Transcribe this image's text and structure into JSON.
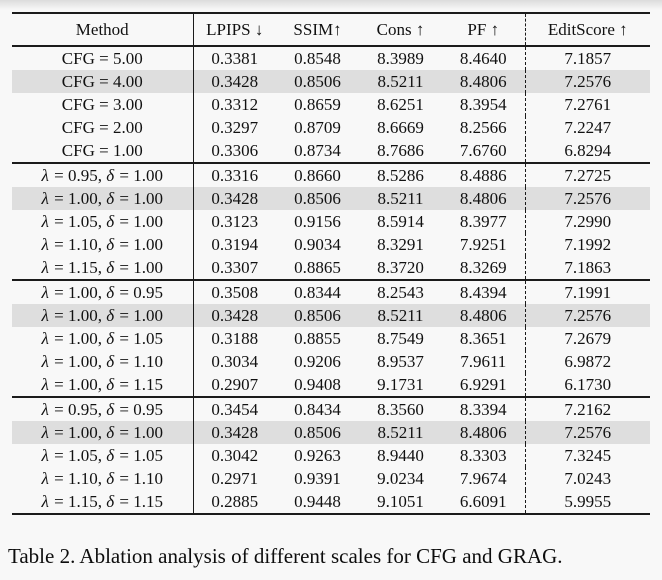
{
  "table": {
    "headers": [
      "Method",
      "LPIPS ↓",
      "SSIM↑",
      "Cons ↑",
      "PF ↑",
      "EditScore ↑"
    ],
    "groups": [
      {
        "rows": [
          {
            "method": "CFG = 5.00",
            "values": [
              "0.3381",
              "0.8548",
              "8.3989",
              "8.4640",
              "7.1857"
            ],
            "highlight": false
          },
          {
            "method": "CFG = 4.00",
            "values": [
              "0.3428",
              "0.8506",
              "8.5211",
              "8.4806",
              "7.2576"
            ],
            "highlight": true
          },
          {
            "method": "CFG = 3.00",
            "values": [
              "0.3312",
              "0.8659",
              "8.6251",
              "8.3954",
              "7.2761"
            ],
            "highlight": false
          },
          {
            "method": "CFG = 2.00",
            "values": [
              "0.3297",
              "0.8709",
              "8.6669",
              "8.2566",
              "7.2247"
            ],
            "highlight": false
          },
          {
            "method": "CFG = 1.00",
            "values": [
              "0.3306",
              "0.8734",
              "8.7686",
              "7.6760",
              "6.8294"
            ],
            "highlight": false
          }
        ]
      },
      {
        "rows": [
          {
            "method": "λ = 0.95, δ = 1.00",
            "values": [
              "0.3316",
              "0.8660",
              "8.5286",
              "8.4886",
              "7.2725"
            ],
            "highlight": false
          },
          {
            "method": "λ = 1.00, δ = 1.00",
            "values": [
              "0.3428",
              "0.8506",
              "8.5211",
              "8.4806",
              "7.2576"
            ],
            "highlight": true
          },
          {
            "method": "λ = 1.05, δ = 1.00",
            "values": [
              "0.3123",
              "0.9156",
              "8.5914",
              "8.3977",
              "7.2990"
            ],
            "highlight": false
          },
          {
            "method": "λ = 1.10, δ = 1.00",
            "values": [
              "0.3194",
              "0.9034",
              "8.3291",
              "7.9251",
              "7.1992"
            ],
            "highlight": false
          },
          {
            "method": "λ = 1.15, δ = 1.00",
            "values": [
              "0.3307",
              "0.8865",
              "8.3720",
              "8.3269",
              "7.1863"
            ],
            "highlight": false
          }
        ]
      },
      {
        "rows": [
          {
            "method": "λ = 1.00, δ = 0.95",
            "values": [
              "0.3508",
              "0.8344",
              "8.2543",
              "8.4394",
              "7.1991"
            ],
            "highlight": false
          },
          {
            "method": "λ = 1.00, δ = 1.00",
            "values": [
              "0.3428",
              "0.8506",
              "8.5211",
              "8.4806",
              "7.2576"
            ],
            "highlight": true
          },
          {
            "method": "λ = 1.00, δ = 1.05",
            "values": [
              "0.3188",
              "0.8855",
              "8.7549",
              "8.3651",
              "7.2679"
            ],
            "highlight": false
          },
          {
            "method": "λ = 1.00, δ = 1.10",
            "values": [
              "0.3034",
              "0.9206",
              "8.9537",
              "7.9611",
              "6.9872"
            ],
            "highlight": false
          },
          {
            "method": "λ = 1.00, δ = 1.15",
            "values": [
              "0.2907",
              "0.9408",
              "9.1731",
              "6.9291",
              "6.1730"
            ],
            "highlight": false
          }
        ]
      },
      {
        "rows": [
          {
            "method": "λ = 0.95, δ = 0.95",
            "values": [
              "0.3454",
              "0.8434",
              "8.3560",
              "8.3394",
              "7.2162"
            ],
            "highlight": false
          },
          {
            "method": "λ = 1.00, δ = 1.00",
            "values": [
              "0.3428",
              "0.8506",
              "8.5211",
              "8.4806",
              "7.2576"
            ],
            "highlight": true
          },
          {
            "method": "λ = 1.05, δ = 1.05",
            "values": [
              "0.3042",
              "0.9263",
              "8.9440",
              "8.3303",
              "7.3245"
            ],
            "highlight": false
          },
          {
            "method": "λ = 1.10, δ = 1.10",
            "values": [
              "0.2971",
              "0.9391",
              "9.0234",
              "7.9674",
              "7.0243"
            ],
            "highlight": false
          },
          {
            "method": "λ = 1.15, δ = 1.15",
            "values": [
              "0.2885",
              "0.9448",
              "9.1051",
              "6.6091",
              "5.9955"
            ],
            "highlight": false
          }
        ]
      }
    ]
  },
  "caption": "Table 2. Ablation analysis of different scales for CFG and GRAG.",
  "colors": {
    "highlight_row": "#dedede",
    "rule": "#1b1b1b",
    "background": "#f8f8f8"
  }
}
